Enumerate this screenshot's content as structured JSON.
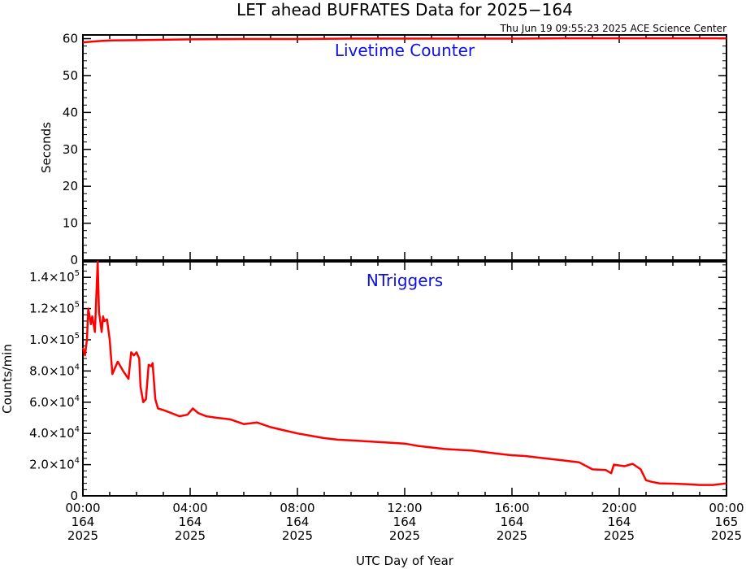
{
  "title": "LET ahead BUFRATES Data for 2025−164",
  "timestamp": "Thu Jun 19 09:55:23 2025 ACE Science Center",
  "xlabel": "UTC Day of Year",
  "colors": {
    "series": "#ff0000",
    "panel_label": "#1010e0",
    "axes": "#000000"
  },
  "x_ticks": [
    {
      "time": "00:00",
      "doy": "164",
      "year": "2025"
    },
    {
      "time": "04:00",
      "doy": "164",
      "year": "2025"
    },
    {
      "time": "08:00",
      "doy": "164",
      "year": "2025"
    },
    {
      "time": "12:00",
      "doy": "164",
      "year": "2025"
    },
    {
      "time": "16:00",
      "doy": "164",
      "year": "2025"
    },
    {
      "time": "20:00",
      "doy": "164",
      "year": "2025"
    },
    {
      "time": "00:00",
      "doy": "165",
      "year": "2025"
    }
  ],
  "chart_data": [
    {
      "type": "line",
      "panel_label": "Livetime Counter",
      "ylabel": "Seconds",
      "ylim": [
        0,
        61
      ],
      "yticks": [
        0,
        10,
        20,
        30,
        40,
        50,
        60
      ],
      "xlim_hours": [
        0,
        24
      ],
      "series": [
        {
          "x": [
            0,
            0.5,
            1,
            2,
            3,
            4,
            6,
            8,
            10,
            12,
            14,
            16,
            18,
            20,
            22,
            24
          ],
          "y": [
            59.0,
            59.3,
            59.5,
            59.6,
            59.7,
            59.8,
            59.9,
            59.9,
            60.0,
            60.0,
            60.0,
            60.0,
            60.1,
            60.1,
            60.1,
            60.1
          ]
        }
      ]
    },
    {
      "type": "line",
      "panel_label": "NTriggers",
      "ylabel": "Counts/min",
      "ylim": [
        0,
        150000
      ],
      "yticks": [
        {
          "value": 0,
          "mant": "0",
          "exp": ""
        },
        {
          "value": 20000,
          "mant": "2.0×10",
          "exp": "4"
        },
        {
          "value": 40000,
          "mant": "4.0×10",
          "exp": "4"
        },
        {
          "value": 60000,
          "mant": "6.0×10",
          "exp": "4"
        },
        {
          "value": 80000,
          "mant": "8.0×10",
          "exp": "4"
        },
        {
          "value": 100000,
          "mant": "1.0×10",
          "exp": "5"
        },
        {
          "value": 120000,
          "mant": "1.2×10",
          "exp": "5"
        },
        {
          "value": 140000,
          "mant": "1.4×10",
          "exp": "5"
        }
      ],
      "xlim_hours": [
        0,
        24
      ],
      "series": [
        {
          "x": [
            0,
            0.08,
            0.15,
            0.2,
            0.3,
            0.35,
            0.45,
            0.55,
            0.6,
            0.7,
            0.75,
            0.8,
            0.9,
            1.0,
            1.1,
            1.3,
            1.5,
            1.7,
            1.8,
            1.9,
            2.0,
            2.1,
            2.15,
            2.25,
            2.35,
            2.45,
            2.55,
            2.6,
            2.7,
            2.8,
            3.0,
            3.3,
            3.6,
            3.9,
            4.1,
            4.3,
            4.6,
            5.0,
            5.5,
            6.0,
            6.5,
            7.0,
            7.5,
            8.0,
            8.5,
            9.0,
            9.5,
            10,
            10.5,
            11,
            11.5,
            12,
            12.5,
            13,
            13.5,
            14,
            14.5,
            15,
            15.5,
            16,
            16.5,
            17,
            17.5,
            18,
            18.5,
            19,
            19.5,
            19.7,
            19.8,
            20,
            20.2,
            20.5,
            20.8,
            21,
            21.2,
            21.5,
            22,
            22.5,
            23,
            23.5,
            24
          ],
          "y": [
            95000,
            90000,
            100000,
            120000,
            110000,
            115000,
            105000,
            150000,
            118000,
            105000,
            115000,
            112000,
            113000,
            100000,
            78000,
            86000,
            80000,
            75000,
            92000,
            90000,
            92000,
            88000,
            70000,
            60000,
            62000,
            84000,
            83000,
            85000,
            62000,
            56000,
            55000,
            53000,
            51000,
            52000,
            56000,
            53000,
            51000,
            50000,
            49000,
            46000,
            47000,
            44000,
            42000,
            40000,
            38500,
            37000,
            36000,
            35500,
            35000,
            34500,
            34000,
            33500,
            32000,
            31000,
            30000,
            29500,
            29000,
            28000,
            27000,
            26000,
            25500,
            24500,
            23500,
            22500,
            21500,
            17000,
            16500,
            14500,
            20000,
            19500,
            19000,
            20500,
            17000,
            10000,
            9000,
            8000,
            7800,
            7500,
            7000,
            7000,
            8000
          ]
        }
      ]
    }
  ]
}
